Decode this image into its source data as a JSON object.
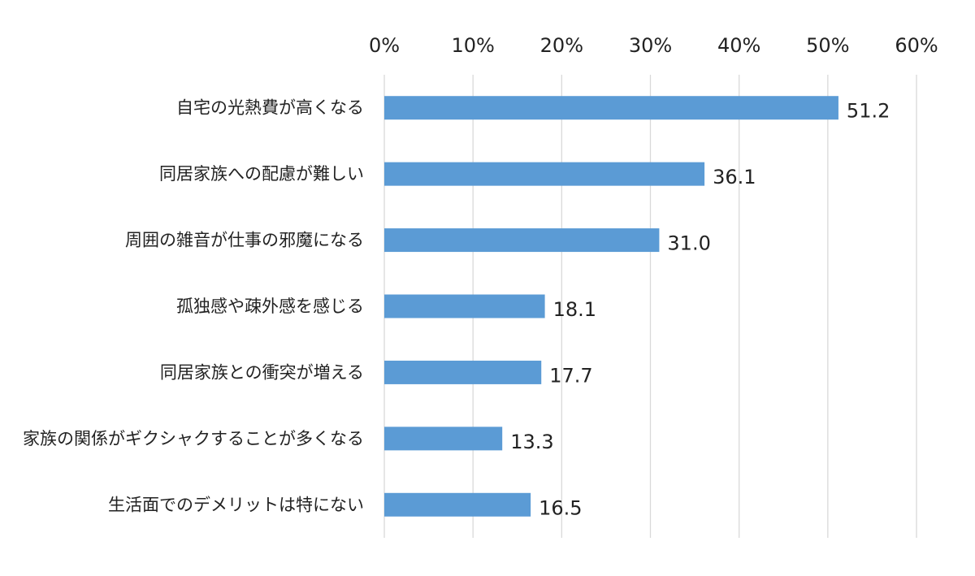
{
  "chart_data": {
    "type": "bar",
    "orientation": "horizontal",
    "categories": [
      "自宅の光熱費が高くなる",
      "同居家族への配慮が難しい",
      "周囲の雑音が仕事の邪魔になる",
      "孤独感や疎外感を感じる",
      "同居家族との衝突が増える",
      "家族の関係がギクシャクすることが多くなる",
      "生活面でのデメリットは特にない"
    ],
    "values": [
      51.2,
      36.1,
      31.0,
      18.1,
      17.7,
      13.3,
      16.5
    ],
    "value_labels": [
      "51.2",
      "36.1",
      "31.0",
      "18.1",
      "17.7",
      "13.3",
      "16.5"
    ],
    "x_ticks": [
      "0%",
      "10%",
      "20%",
      "30%",
      "40%",
      "50%",
      "60%"
    ],
    "xlim": [
      0,
      60
    ],
    "x_axis_position": "top",
    "grid": true,
    "legend": false,
    "bar_color": "#5b9bd5",
    "title": "",
    "xlabel": "",
    "ylabel": ""
  }
}
